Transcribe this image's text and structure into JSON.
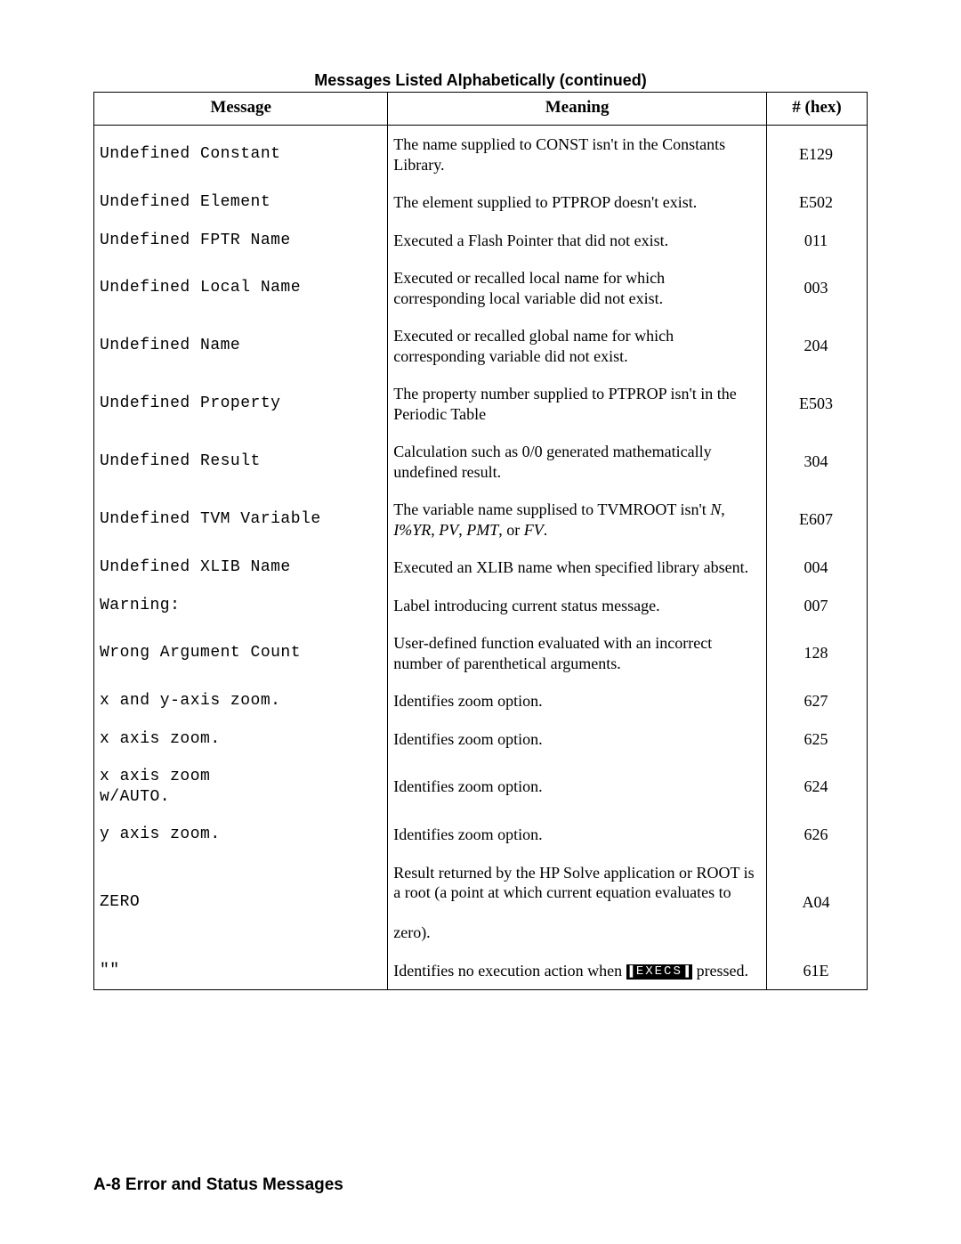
{
  "caption": "Messages Listed Alphabetically (continued)",
  "columns": [
    "Message",
    "Meaning",
    "# (hex)"
  ],
  "footer": "A-8   Error and Status Messages",
  "rows": [
    {
      "msg": "Undefined Constant",
      "meaning_html": "The name supplied to CONST isn't in the Constants Library.",
      "hex": "E129"
    },
    {
      "msg": "Undefined Element",
      "meaning_html": "The element supplied to PTPROP doesn't exist.",
      "hex": "E502"
    },
    {
      "msg": "Undefined FPTR Name",
      "meaning_html": "Executed a Flash Pointer that did not exist.",
      "hex": "011"
    },
    {
      "msg": "Undefined Local Name",
      "meaning_html": "Executed or recalled local name for which corresponding local variable did not exist.",
      "hex": "003"
    },
    {
      "msg": "Undefined Name",
      "meaning_html": "Executed or recalled global name for which corresponding variable did not exist.",
      "hex": "204"
    },
    {
      "msg": "Undefined Property",
      "meaning_html": "The property number supplied to PTPROP isn't in the Periodic Table",
      "hex": "E503"
    },
    {
      "msg": "Undefined Result",
      "meaning_html": "Calculation such as 0/0 generated mathematically undefined result.",
      "hex": "304"
    },
    {
      "msg": "Undefined TVM Variable",
      "meaning_html": "The variable name supplised to TVMROOT isn't <span class=\"ital\">N</span>, <span class=\"ital\">I%YR</span>, <span class=\"ital\">PV</span>, <span class=\"ital\">PMT</span>, or <span class=\"ital\">FV</span>.",
      "hex": "E607"
    },
    {
      "msg": "Undefined XLIB Name",
      "meaning_html": "Executed an XLIB name when specified library absent.",
      "hex": "004"
    },
    {
      "msg": "Warning:",
      "meaning_html": "Label introducing current status message.",
      "hex": "007"
    },
    {
      "msg": "Wrong Argument Count",
      "meaning_html": "User-defined function evaluated with an incorrect number of parenthetical arguments.",
      "hex": "128"
    },
    {
      "msg": "x and y-axis zoom.",
      "meaning_html": "Identifies zoom option.",
      "hex": "627"
    },
    {
      "msg": "x axis zoom.",
      "meaning_html": "Identifies zoom option.",
      "hex": "625"
    },
    {
      "msg": "x axis zoom\nw/AUTO.",
      "meaning_html": "Identifies zoom option.",
      "hex": "624"
    },
    {
      "msg": "y axis zoom.",
      "meaning_html": "Identifies zoom option.",
      "hex": "626"
    },
    {
      "msg": "ZERO",
      "meaning_html": "Result returned by the HP Solve application or ROOT is a root (a point at which current equation evaluates to<br><br>zero).",
      "hex": "A04"
    },
    {
      "msg": "\"\"",
      "meaning_html": "Identifies no execution action when <span class=\"execs\">EXECS</span> pressed.",
      "hex": "61E"
    }
  ]
}
